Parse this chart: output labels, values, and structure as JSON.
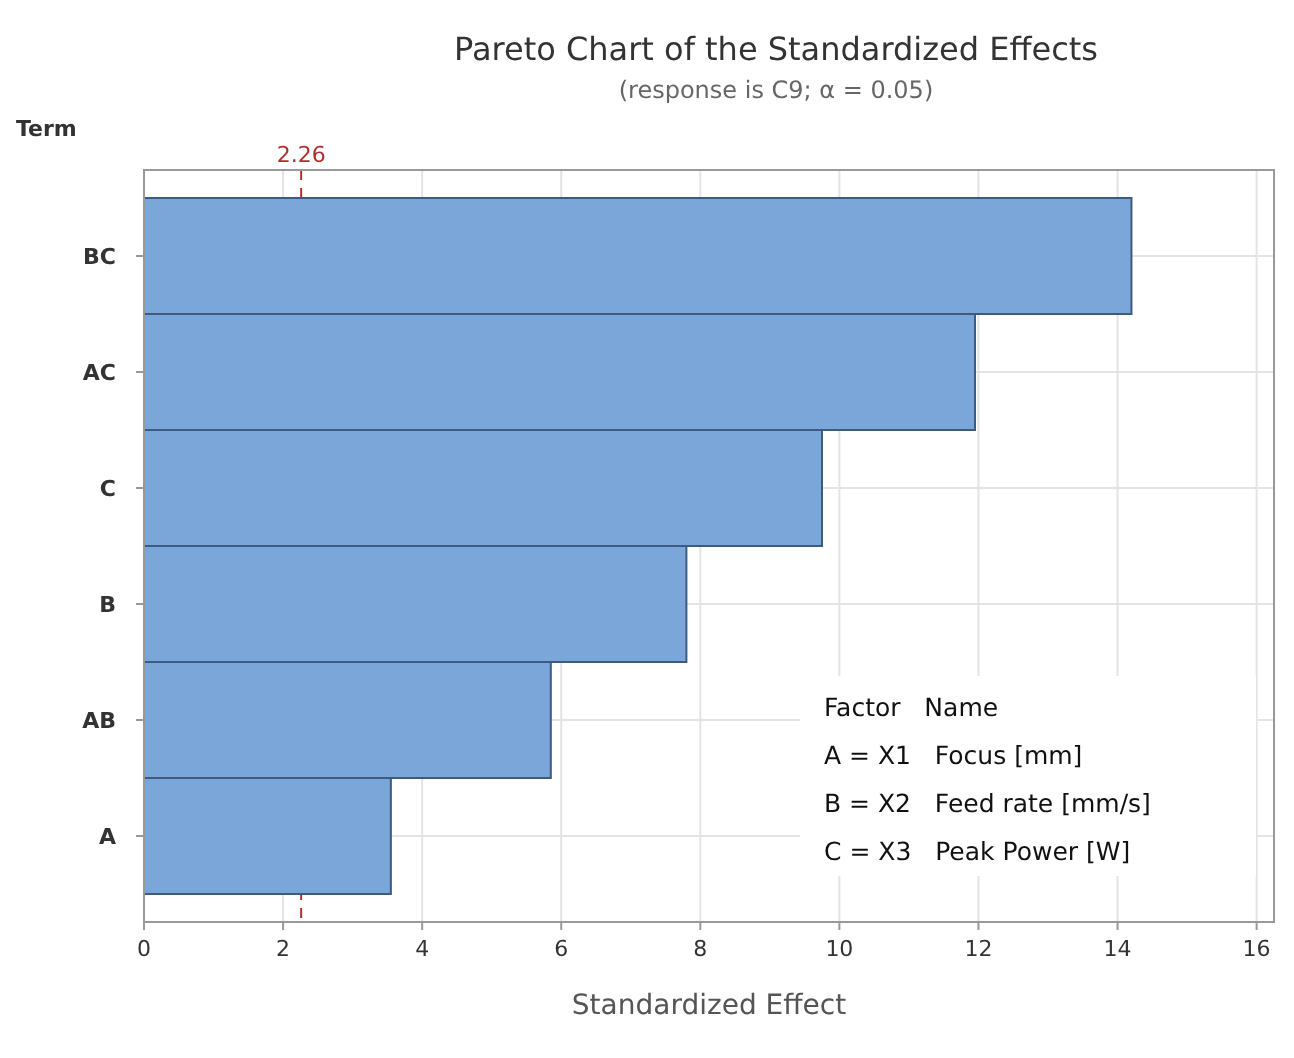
{
  "chart_data": {
    "type": "bar",
    "orientation": "horizontal",
    "title": "Pareto Chart of the Standardized Effects",
    "subtitle": "(response is C9; α = 0.05)",
    "xlabel": "Standardized Effect",
    "ylabel": "Term",
    "categories": [
      "BC",
      "AC",
      "C",
      "B",
      "AB",
      "A"
    ],
    "values": [
      14.2,
      11.95,
      9.75,
      7.8,
      5.85,
      3.55
    ],
    "color": "#7ba6d9",
    "xlim": [
      0,
      16.25
    ],
    "xticks": [
      0,
      2,
      4,
      6,
      8,
      10,
      12,
      14,
      16
    ],
    "grid": true,
    "ref_lines": [
      {
        "axis": "x",
        "value": 2.26,
        "label": "2.26",
        "color": "#b03030",
        "line_style": "dashed"
      }
    ],
    "annotations": [
      "Factor   Name",
      "A = X1   Focus [mm]",
      "B = X2   Feed rate [mm/s]",
      "C = X3   Peak Power [W]"
    ]
  }
}
